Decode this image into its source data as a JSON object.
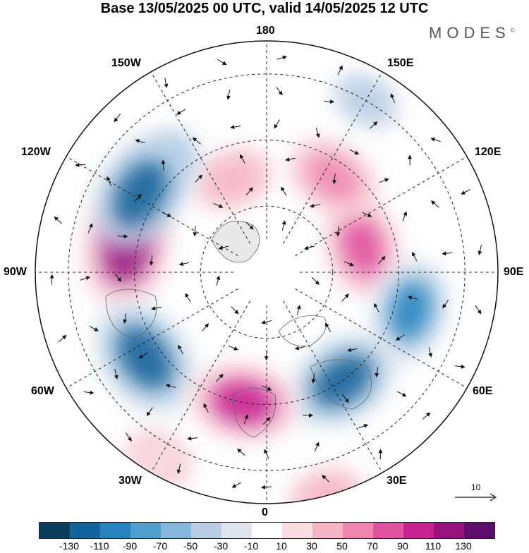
{
  "title": "Base 13/05/2025 00 UTC, valid 14/05/2025 12 UTC",
  "brand": "MODES",
  "brand_mark": "©",
  "longitudes": {
    "top": "180",
    "bottom": "0",
    "left": "90W",
    "right": "90E",
    "upper_left_1": "150W",
    "upper_left_2": "120W",
    "upper_right_1": "150E",
    "upper_right_2": "120E",
    "lower_left_1": "60W",
    "lower_left_2": "30W",
    "lower_right_1": "60E",
    "lower_right_2": "30E"
  },
  "reference_vector": "10",
  "colorbar": {
    "colors": [
      "#0b3d5e",
      "#13649a",
      "#2783bf",
      "#4f9fcf",
      "#86b8dd",
      "#b9cde5",
      "#dfe3ee",
      "#ffffff",
      "#f9dde0",
      "#f6b5c4",
      "#ef86b0",
      "#e0539e",
      "#c62390",
      "#98127e",
      "#5e0e6d"
    ],
    "ticks": [
      "-130",
      "-110",
      "-90",
      "-70",
      "-50",
      "-30",
      "-10",
      "10",
      "30",
      "50",
      "70",
      "90",
      "110",
      "130"
    ]
  },
  "anomaly_centers": [
    {
      "lon": 105,
      "lat": 60,
      "value": 80,
      "color": "#e0539e"
    },
    {
      "lon": -160,
      "lat": 60,
      "value": 50,
      "color": "#f6b5c4"
    },
    {
      "lon": -100,
      "lat": 47,
      "value": 110,
      "color": "#98127e"
    },
    {
      "lon": 145,
      "lat": 55,
      "value": 70,
      "color": "#ef86b0"
    },
    {
      "lon": 150,
      "lat": 30,
      "value": -30,
      "color": "#b9cde5"
    },
    {
      "lon": -135,
      "lat": 45,
      "value": -60,
      "color": "#86b8dd"
    },
    {
      "lon": -122,
      "lat": 45,
      "value": -110,
      "color": "#13649a"
    },
    {
      "lon": 75,
      "lat": 45,
      "value": -80,
      "color": "#2783bf"
    },
    {
      "lon": -55,
      "lat": 45,
      "value": -110,
      "color": "#13649a"
    },
    {
      "lon": 35,
      "lat": 50,
      "value": -100,
      "color": "#13649a"
    },
    {
      "lon": -10,
      "lat": 50,
      "value": 90,
      "color": "#c62390"
    },
    {
      "lon": 15,
      "lat": 20,
      "value": 40,
      "color": "#f6b5c4"
    },
    {
      "lon": -30,
      "lat": 25,
      "value": 30,
      "color": "#f9dde0"
    }
  ]
}
